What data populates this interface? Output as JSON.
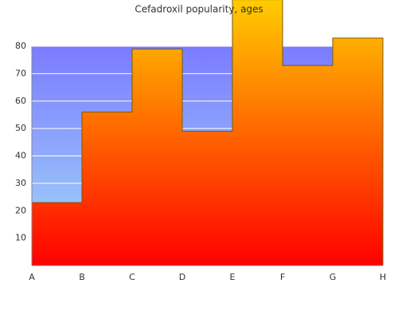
{
  "chart_data": {
    "type": "step-area",
    "title": "Cefadroxil popularity, ages",
    "categories": [
      "A",
      "B",
      "C",
      "D",
      "E",
      "F",
      "G",
      "H"
    ],
    "values": [
      23,
      56,
      79,
      49,
      97,
      73,
      83,
      83
    ],
    "ylim": [
      0,
      80
    ],
    "yticks": [
      10,
      20,
      30,
      40,
      50,
      60,
      70,
      80
    ],
    "grid": true,
    "color": "#ff0000",
    "color_top": "#ffcc00",
    "line_color": "#7a5a00"
  }
}
